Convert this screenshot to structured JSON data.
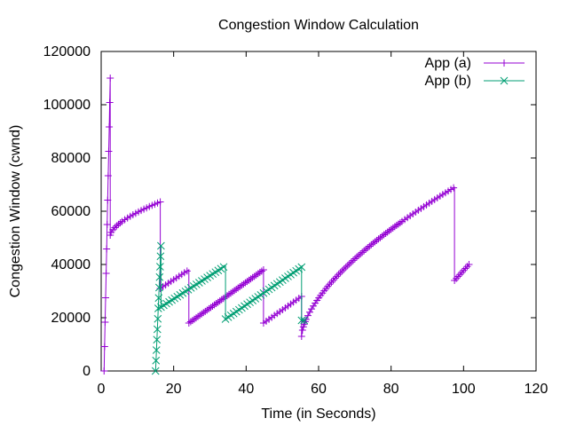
{
  "chart_data": {
    "type": "line",
    "title": "Congestion Window Calculation",
    "xlabel": "Time (in Seconds)",
    "ylabel": "Congestion Window (cwnd)",
    "xlim": [
      0,
      120
    ],
    "ylim": [
      0,
      120000
    ],
    "xticks": [
      0,
      20,
      40,
      60,
      80,
      100,
      120
    ],
    "yticks": [
      0,
      20000,
      40000,
      60000,
      80000,
      100000,
      120000
    ],
    "grid": false,
    "legend": "top-right",
    "series": [
      {
        "name": "App (a)",
        "color": "#9400d3",
        "marker": "plus",
        "segments": [
          {
            "x_start": 0.8,
            "x_end": 2.5,
            "y_start": 0,
            "y_end": 110000,
            "shape": "linear"
          },
          {
            "x_start": 2.5,
            "x_end": 16.3,
            "y_start": 51000,
            "y_end": 63500,
            "shape": "concave"
          },
          {
            "x_start": 16.3,
            "x_end": 24.2,
            "y_start": 31000,
            "y_end": 38000,
            "shape": "linear"
          },
          {
            "x_start": 24.2,
            "x_end": 44.8,
            "y_start": 18000,
            "y_end": 38000,
            "shape": "linear"
          },
          {
            "x_start": 44.8,
            "x_end": 55.3,
            "y_start": 18000,
            "y_end": 28000,
            "shape": "linear"
          },
          {
            "x_start": 55.3,
            "x_end": 97.5,
            "y_start": 13000,
            "y_end": 69000,
            "shape": "concave"
          },
          {
            "x_start": 97.5,
            "x_end": 101.5,
            "y_start": 34000,
            "y_end": 40000,
            "shape": "linear"
          }
        ]
      },
      {
        "name": "App (b)",
        "color": "#009e73",
        "marker": "x",
        "segments": [
          {
            "x_start": 15.0,
            "x_end": 16.5,
            "y_start": 0,
            "y_end": 47000,
            "shape": "linear"
          },
          {
            "x_start": 16.5,
            "x_end": 34.3,
            "y_start": 24000,
            "y_end": 39500,
            "shape": "linear"
          },
          {
            "x_start": 34.3,
            "x_end": 55.3,
            "y_start": 19500,
            "y_end": 39000,
            "shape": "linear"
          },
          {
            "x_start": 55.3,
            "x_end": 56.5,
            "y_start": 19000,
            "y_end": 19000,
            "shape": "linear"
          }
        ]
      }
    ]
  }
}
